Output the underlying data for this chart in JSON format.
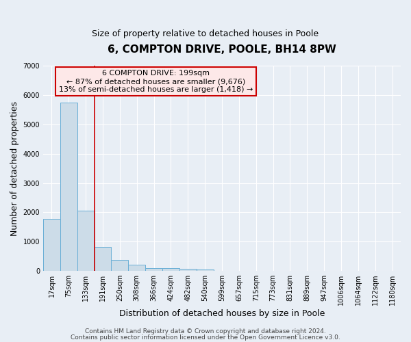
{
  "title": "6, COMPTON DRIVE, POOLE, BH14 8PW",
  "subtitle": "Size of property relative to detached houses in Poole",
  "xlabel": "Distribution of detached houses by size in Poole",
  "ylabel": "Number of detached properties",
  "bin_labels": [
    "17sqm",
    "75sqm",
    "133sqm",
    "191sqm",
    "250sqm",
    "308sqm",
    "366sqm",
    "424sqm",
    "482sqm",
    "540sqm",
    "599sqm",
    "657sqm",
    "715sqm",
    "773sqm",
    "831sqm",
    "889sqm",
    "947sqm",
    "1006sqm",
    "1064sqm",
    "1122sqm",
    "1180sqm"
  ],
  "bar_heights": [
    1780,
    5750,
    2050,
    830,
    370,
    215,
    105,
    85,
    75,
    55,
    0,
    0,
    0,
    0,
    0,
    0,
    0,
    0,
    0,
    0,
    0
  ],
  "bar_color": "#ccdce8",
  "bar_edge_color": "#6aafd6",
  "ylim": [
    0,
    7000
  ],
  "yticks": [
    0,
    1000,
    2000,
    3000,
    4000,
    5000,
    6000,
    7000
  ],
  "annotation_line1": "6 COMPTON DRIVE: 199sqm",
  "annotation_line2": "← 87% of detached houses are smaller (9,676)",
  "annotation_line3": "13% of semi-detached houses are larger (1,418) →",
  "annotation_box_facecolor": "#fde8e8",
  "annotation_box_edgecolor": "#cc0000",
  "vertical_line_color": "#cc0000",
  "vertical_line_x": 2.5,
  "footer_line1": "Contains HM Land Registry data © Crown copyright and database right 2024.",
  "footer_line2": "Contains public sector information licensed under the Open Government Licence v3.0.",
  "background_color": "#e8eef5",
  "grid_color": "#ffffff",
  "title_fontsize": 11,
  "subtitle_fontsize": 9,
  "axis_label_fontsize": 9,
  "tick_fontsize": 7,
  "annotation_fontsize": 8,
  "footer_fontsize": 6.5
}
